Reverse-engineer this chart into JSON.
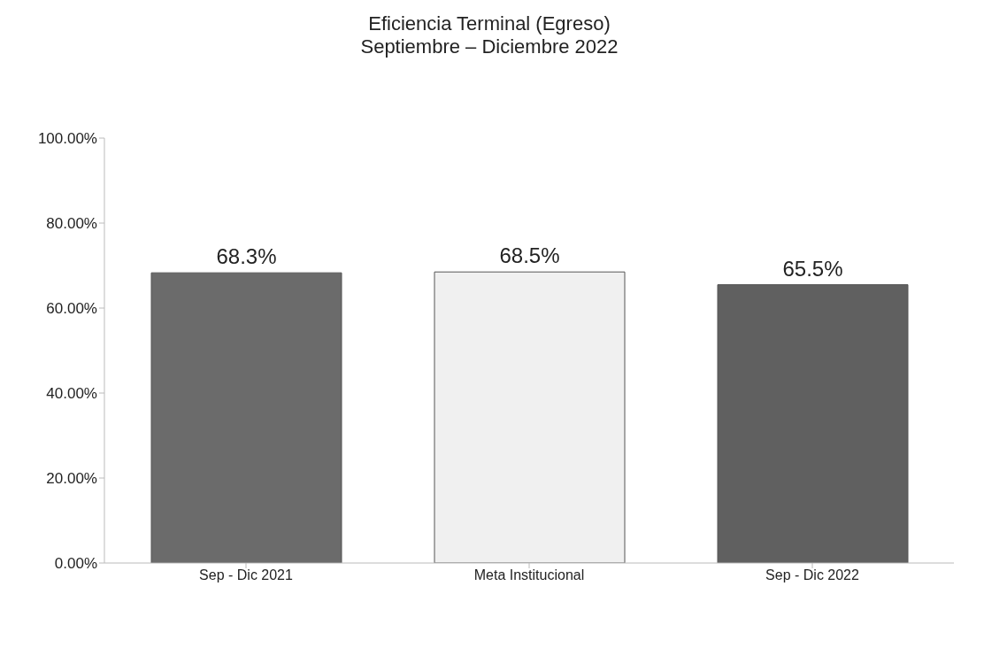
{
  "chart_data": {
    "type": "bar",
    "title": "Eficiencia Terminal (Egreso)",
    "subtitle": "Septiembre – Diciembre 2022",
    "categories": [
      "Sep - Dic 2021",
      "Meta Institucional",
      "Sep - Dic 2022"
    ],
    "values": [
      68.3,
      68.5,
      65.5
    ],
    "colors": [
      "#6b6b6b",
      "#f0f0f0",
      "#606060"
    ],
    "value_labels": [
      "68.3%",
      "68.5%",
      "65.5%"
    ],
    "ylim": [
      0,
      100
    ],
    "yticks": [
      {
        "value": 0,
        "label": "0.00%"
      },
      {
        "value": 20,
        "label": "20.00%"
      },
      {
        "value": 40,
        "label": "40.00%"
      },
      {
        "value": 60,
        "label": "60.00%"
      },
      {
        "value": 80,
        "label": "80.00%"
      },
      {
        "value": 100,
        "label": "100.00%"
      }
    ]
  }
}
